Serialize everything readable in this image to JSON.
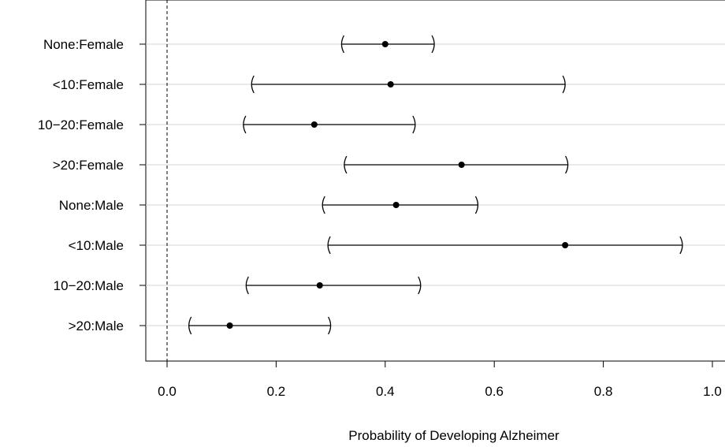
{
  "chart_data": {
    "type": "scatter",
    "style": "point estimates with confidence intervals",
    "xlabel": "Probability of Developing Alzheimer",
    "xlim": [
      -0.04,
      1.02
    ],
    "x_ticks": [
      "0.0",
      "0.2",
      "0.4",
      "0.6",
      "0.8",
      "1.0"
    ],
    "x_tick_values": [
      0,
      0.2,
      0.4,
      0.6,
      0.8,
      1.0
    ],
    "reference_line": {
      "x": 0,
      "style": "dashed"
    },
    "grid": "horizontal",
    "categories": [
      "None:Female",
      "<10:Female",
      "10−20:Female",
      ">20:Female",
      "None:Male",
      "<10:Male",
      "10−20:Male",
      ">20:Male"
    ],
    "estimate": [
      0.4,
      0.41,
      0.27,
      0.54,
      0.42,
      0.73,
      0.28,
      0.115
    ],
    "lower": [
      0.32,
      0.155,
      0.14,
      0.325,
      0.285,
      0.295,
      0.145,
      0.04
    ],
    "upper": [
      0.49,
      0.73,
      0.455,
      0.735,
      0.57,
      0.945,
      0.465,
      0.3
    ]
  }
}
